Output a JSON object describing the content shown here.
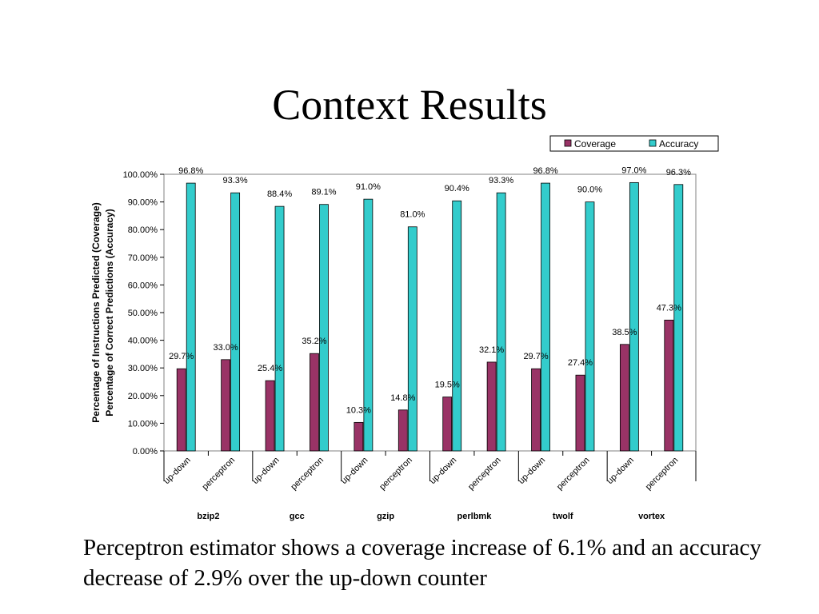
{
  "slide": {
    "title": "Context Results",
    "caption": "Perceptron estimator shows a coverage increase of 6.1% and an accuracy decrease of 2.9% over the up-down counter"
  },
  "chart_data": {
    "type": "bar",
    "title": "",
    "ylabel_lines": [
      "Percentage of Instructions Predicted (Coverage)",
      "Percentage of Correct Predictions (Accuracy)"
    ],
    "ylim": [
      0,
      100
    ],
    "yticks": [
      "0.00%",
      "10.00%",
      "20.00%",
      "30.00%",
      "40.00%",
      "50.00%",
      "60.00%",
      "70.00%",
      "80.00%",
      "90.00%",
      "100.00%"
    ],
    "grid": false,
    "legend_position": "top-right",
    "groups": [
      "bzip2",
      "gcc",
      "gzip",
      "perlbmk",
      "twolf",
      "vortex"
    ],
    "subcategories": [
      "up-down",
      "perceptron"
    ],
    "series": [
      {
        "name": "Coverage",
        "color": "#993366",
        "values": [
          29.7,
          33.0,
          25.4,
          35.2,
          10.3,
          14.8,
          19.5,
          32.1,
          29.7,
          27.4,
          38.5,
          47.3
        ],
        "labels": [
          "29.7%",
          "33.0%",
          "25.4%",
          "35.2%",
          "10.3%",
          "14.8%",
          "19.5%",
          "32.1%",
          "29.7%",
          "27.4%",
          "38.5%",
          "47.3%"
        ]
      },
      {
        "name": "Accuracy",
        "color": "#33cccc",
        "values": [
          96.8,
          93.3,
          88.4,
          89.1,
          91.0,
          81.0,
          90.4,
          93.3,
          96.8,
          90.0,
          97.0,
          96.3
        ],
        "labels": [
          "96.8%",
          "93.3%",
          "88.4%",
          "89.1%",
          "91.0%",
          "81.0%",
          "90.4%",
          "93.3%",
          "96.8%",
          "90.0%",
          "97.0%",
          "96.3%"
        ]
      }
    ]
  }
}
